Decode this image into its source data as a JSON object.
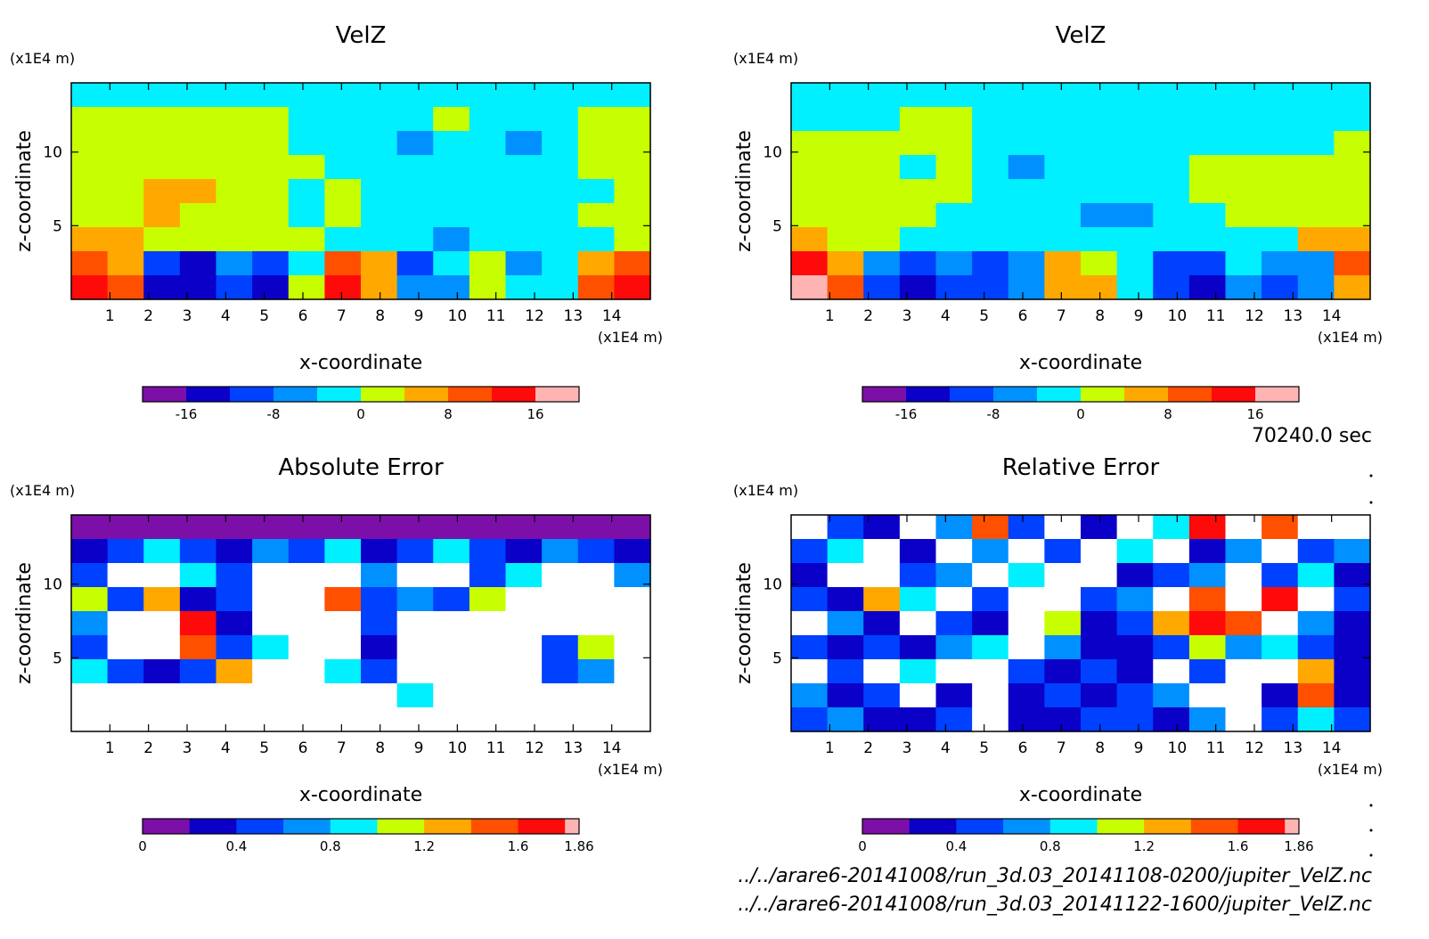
{
  "chart_data": [
    {
      "type": "heatmap",
      "title": "VelZ",
      "xlabel": "x-coordinate",
      "ylabel": "z-coordinate",
      "x_unit": "(x1E4 m)",
      "y_unit": "(x1E4 m)",
      "xlim": [
        0,
        15
      ],
      "ylim": [
        0,
        14.7
      ],
      "x_ticks": [
        "1",
        "2",
        "3",
        "4",
        "5",
        "6",
        "7",
        "8",
        "9",
        "10",
        "11",
        "12",
        "13",
        "14"
      ],
      "y_ticks": [
        "5",
        "10"
      ],
      "colorbar": {
        "levels": [
          -20,
          -16,
          -12,
          -8,
          -4,
          0,
          4,
          8,
          12,
          16,
          20
        ],
        "tick_labels": [
          "-16",
          "-8",
          "0",
          "8",
          "16"
        ],
        "tick_values": [
          -16,
          -8,
          0,
          8,
          16
        ]
      },
      "field": [
        [
          -4,
          -4,
          -4,
          -4,
          -4,
          -4,
          -4,
          -4,
          -4,
          -4,
          -4,
          -4,
          -4,
          -4,
          -4,
          -4
        ],
        [
          2,
          2,
          2,
          2,
          2,
          2,
          -2,
          -2,
          -2,
          -2,
          2,
          -2,
          -2,
          -2,
          2,
          2
        ],
        [
          2,
          2,
          2,
          2,
          2,
          2,
          -2,
          -2,
          -2,
          -6,
          -2,
          -2,
          -6,
          -2,
          2,
          2
        ],
        [
          2,
          2,
          2,
          2,
          2,
          2,
          2,
          -2,
          -2,
          -2,
          -2,
          -2,
          -2,
          -2,
          2,
          2
        ],
        [
          2,
          2,
          6,
          6,
          2,
          2,
          -2,
          2,
          -2,
          -2,
          -2,
          -2,
          -2,
          -2,
          -2,
          2
        ],
        [
          2,
          2,
          6,
          2,
          2,
          2,
          -2,
          2,
          -2,
          -2,
          -2,
          -2,
          -2,
          -2,
          2,
          2
        ],
        [
          6,
          6,
          2,
          2,
          2,
          2,
          2,
          -2,
          -2,
          -2,
          -6,
          -2,
          -2,
          -2,
          -2,
          2
        ],
        [
          10,
          6,
          -10,
          -14,
          -6,
          -10,
          -2,
          10,
          6,
          -10,
          -2,
          2,
          -6,
          -2,
          6,
          10
        ],
        [
          14,
          10,
          -14,
          -14,
          -10,
          -14,
          2,
          14,
          6,
          -6,
          -6,
          2,
          -2,
          -2,
          10,
          14
        ]
      ]
    },
    {
      "type": "heatmap",
      "title": "VelZ",
      "xlabel": "x-coordinate",
      "ylabel": "z-coordinate",
      "x_unit": "(x1E4 m)",
      "y_unit": "(x1E4 m)",
      "xlim": [
        0,
        15
      ],
      "ylim": [
        0,
        14.7
      ],
      "x_ticks": [
        "1",
        "2",
        "3",
        "4",
        "5",
        "6",
        "7",
        "8",
        "9",
        "10",
        "11",
        "12",
        "13",
        "14"
      ],
      "y_ticks": [
        "5",
        "10"
      ],
      "colorbar": {
        "levels": [
          -20,
          -16,
          -12,
          -8,
          -4,
          0,
          4,
          8,
          12,
          16,
          20
        ],
        "tick_labels": [
          "-16",
          "-8",
          "0",
          "8",
          "16"
        ],
        "tick_values": [
          -16,
          -8,
          0,
          8,
          16
        ]
      },
      "field": [
        [
          -4,
          -4,
          -4,
          -4,
          -4,
          -4,
          -4,
          -4,
          -4,
          -4,
          -4,
          -4,
          -4,
          -4,
          -4,
          -4
        ],
        [
          -2,
          -2,
          -2,
          2,
          2,
          -2,
          -2,
          -2,
          -2,
          -2,
          -2,
          -2,
          -2,
          -2,
          -2,
          -2
        ],
        [
          2,
          2,
          2,
          2,
          2,
          -2,
          -2,
          -2,
          -2,
          -2,
          -2,
          -2,
          -2,
          -2,
          -2,
          2
        ],
        [
          2,
          2,
          2,
          -2,
          2,
          -2,
          -6,
          -2,
          -2,
          -2,
          -2,
          2,
          2,
          2,
          2,
          2
        ],
        [
          2,
          2,
          2,
          2,
          2,
          -2,
          -2,
          -2,
          -2,
          -2,
          -2,
          2,
          2,
          2,
          2,
          2
        ],
        [
          2,
          2,
          2,
          2,
          -2,
          -2,
          -2,
          -2,
          -6,
          -6,
          -2,
          -2,
          2,
          2,
          2,
          2
        ],
        [
          6,
          2,
          2,
          -2,
          -2,
          -2,
          -2,
          -2,
          -2,
          -2,
          -2,
          -2,
          -2,
          -2,
          6,
          6
        ],
        [
          14,
          6,
          -6,
          -10,
          -6,
          -10,
          -6,
          6,
          2,
          -2,
          -10,
          -10,
          -2,
          -6,
          -6,
          10
        ],
        [
          18,
          10,
          -10,
          -14,
          -10,
          -10,
          -6,
          6,
          6,
          -2,
          -10,
          -14,
          -6,
          -10,
          -6,
          6
        ]
      ]
    },
    {
      "type": "heatmap",
      "title": "Absolute Error",
      "xlabel": "x-coordinate",
      "ylabel": "z-coordinate",
      "x_unit": "(x1E4 m)",
      "y_unit": "(x1E4 m)",
      "xlim": [
        0,
        15
      ],
      "ylim": [
        0,
        14.7
      ],
      "x_ticks": [
        "1",
        "2",
        "3",
        "4",
        "5",
        "6",
        "7",
        "8",
        "9",
        "10",
        "11",
        "12",
        "13",
        "14"
      ],
      "y_ticks": [
        "5",
        "10"
      ],
      "colorbar": {
        "levels": [
          0,
          0.2,
          0.4,
          0.6,
          0.8,
          1.0,
          1.2,
          1.4,
          1.6,
          1.8,
          1.86
        ],
        "tick_labels": [
          "0",
          "0.4",
          "0.8",
          "1.2",
          "1.6",
          "1.86"
        ],
        "tick_values": [
          0,
          0.4,
          0.8,
          1.2,
          1.6,
          1.86
        ]
      },
      "field": [
        [
          0.1,
          0.1,
          0.1,
          0.1,
          0.1,
          0.1,
          0.1,
          0.1,
          0.1,
          0.1,
          0.1,
          0.1,
          0.1,
          0.1,
          0.1,
          0.1
        ],
        [
          0.3,
          0.5,
          0.9,
          0.5,
          0.3,
          0.7,
          0.5,
          0.9,
          0.3,
          0.5,
          0.9,
          0.5,
          0.3,
          0.7,
          0.5,
          0.3
        ],
        [
          0.5,
          2,
          2,
          0.9,
          0.5,
          2,
          2,
          2,
          0.7,
          2,
          2,
          0.5,
          0.9,
          2,
          2,
          0.7
        ],
        [
          1.1,
          0.5,
          1.3,
          0.3,
          0.5,
          2,
          2,
          1.5,
          0.5,
          0.7,
          0.5,
          1.1,
          2,
          2,
          2,
          2
        ],
        [
          0.7,
          2,
          2,
          1.7,
          0.3,
          2,
          2,
          2,
          0.5,
          2,
          2,
          2,
          2,
          2,
          2,
          2
        ],
        [
          0.5,
          2,
          2,
          1.5,
          0.5,
          0.9,
          2,
          2,
          0.3,
          2,
          2,
          2,
          2,
          0.5,
          1.1,
          2
        ],
        [
          0.9,
          0.5,
          0.3,
          0.5,
          1.3,
          2,
          2,
          0.9,
          0.5,
          2,
          2,
          2,
          2,
          0.5,
          0.7,
          2
        ],
        [
          2,
          2,
          2,
          2,
          2,
          2,
          2,
          2,
          2,
          0.9,
          2,
          2,
          2,
          2,
          2,
          2
        ],
        [
          2,
          2,
          2,
          2,
          2,
          2,
          2,
          2,
          2,
          2,
          2,
          2,
          2,
          2,
          2,
          2
        ]
      ]
    },
    {
      "type": "heatmap",
      "title": "Relative Error",
      "xlabel": "x-coordinate",
      "ylabel": "z-coordinate",
      "x_unit": "(x1E4 m)",
      "y_unit": "(x1E4 m)",
      "xlim": [
        0,
        15
      ],
      "ylim": [
        0,
        14.7
      ],
      "x_ticks": [
        "1",
        "2",
        "3",
        "4",
        "5",
        "6",
        "7",
        "8",
        "9",
        "10",
        "11",
        "12",
        "13",
        "14"
      ],
      "y_ticks": [
        "5",
        "10"
      ],
      "colorbar": {
        "levels": [
          0,
          0.2,
          0.4,
          0.6,
          0.8,
          1.0,
          1.2,
          1.4,
          1.6,
          1.8,
          1.86
        ],
        "tick_labels": [
          "0",
          "0.4",
          "0.8",
          "1.2",
          "1.6",
          "1.86"
        ],
        "tick_values": [
          0,
          0.4,
          0.8,
          1.2,
          1.6,
          1.86
        ]
      },
      "field": [
        [
          2,
          0.5,
          0.3,
          2,
          0.7,
          1.5,
          0.5,
          2,
          0.3,
          2,
          0.9,
          1.7,
          2,
          1.5,
          2,
          2
        ],
        [
          0.5,
          0.9,
          2,
          0.3,
          2,
          0.7,
          2,
          0.5,
          2,
          0.9,
          2,
          0.3,
          0.7,
          2,
          0.5,
          0.7
        ],
        [
          0.3,
          2,
          2,
          0.5,
          0.7,
          2,
          0.9,
          2,
          2,
          0.3,
          0.5,
          0.7,
          2,
          0.5,
          0.9,
          0.3
        ],
        [
          0.5,
          0.3,
          1.3,
          0.9,
          2,
          0.5,
          2,
          2,
          0.5,
          0.7,
          2,
          1.5,
          2,
          1.7,
          2,
          0.5
        ],
        [
          2,
          0.7,
          0.3,
          2,
          0.5,
          0.3,
          2,
          1.1,
          0.3,
          0.5,
          1.3,
          1.7,
          1.5,
          2,
          0.7,
          0.3
        ],
        [
          0.5,
          0.3,
          0.5,
          0.3,
          0.7,
          0.9,
          2,
          0.7,
          0.3,
          0.3,
          0.5,
          1.1,
          0.7,
          0.9,
          0.5,
          0.3
        ],
        [
          2,
          0.5,
          2,
          0.9,
          2,
          2,
          0.5,
          0.3,
          0.5,
          0.3,
          2,
          0.5,
          2,
          2,
          1.3,
          0.3
        ],
        [
          0.7,
          0.3,
          0.5,
          2,
          0.3,
          2,
          0.3,
          0.5,
          0.3,
          0.5,
          0.7,
          2,
          2,
          0.3,
          1.5,
          0.3
        ],
        [
          0.5,
          0.7,
          0.3,
          0.3,
          0.5,
          2,
          0.3,
          0.3,
          0.5,
          0.5,
          0.3,
          0.7,
          2,
          0.5,
          0.9,
          0.5
        ]
      ]
    }
  ],
  "palette": [
    "#7b0fa8",
    "#0b00c8",
    "#0040ff",
    "#0090ff",
    "#00f0ff",
    "#c8ff00",
    "#ffa800",
    "#ff5000",
    "#ff0a0a",
    "#ffb4b4"
  ],
  "info": {
    "time": "70240.0 sec",
    "file1": "../../arare6-20141008/run_3d.03_20141108-0200/jupiter_VelZ.nc",
    "file2": "../../arare6-20141008/run_3d.03_20141122-1600/jupiter_VelZ.nc"
  }
}
